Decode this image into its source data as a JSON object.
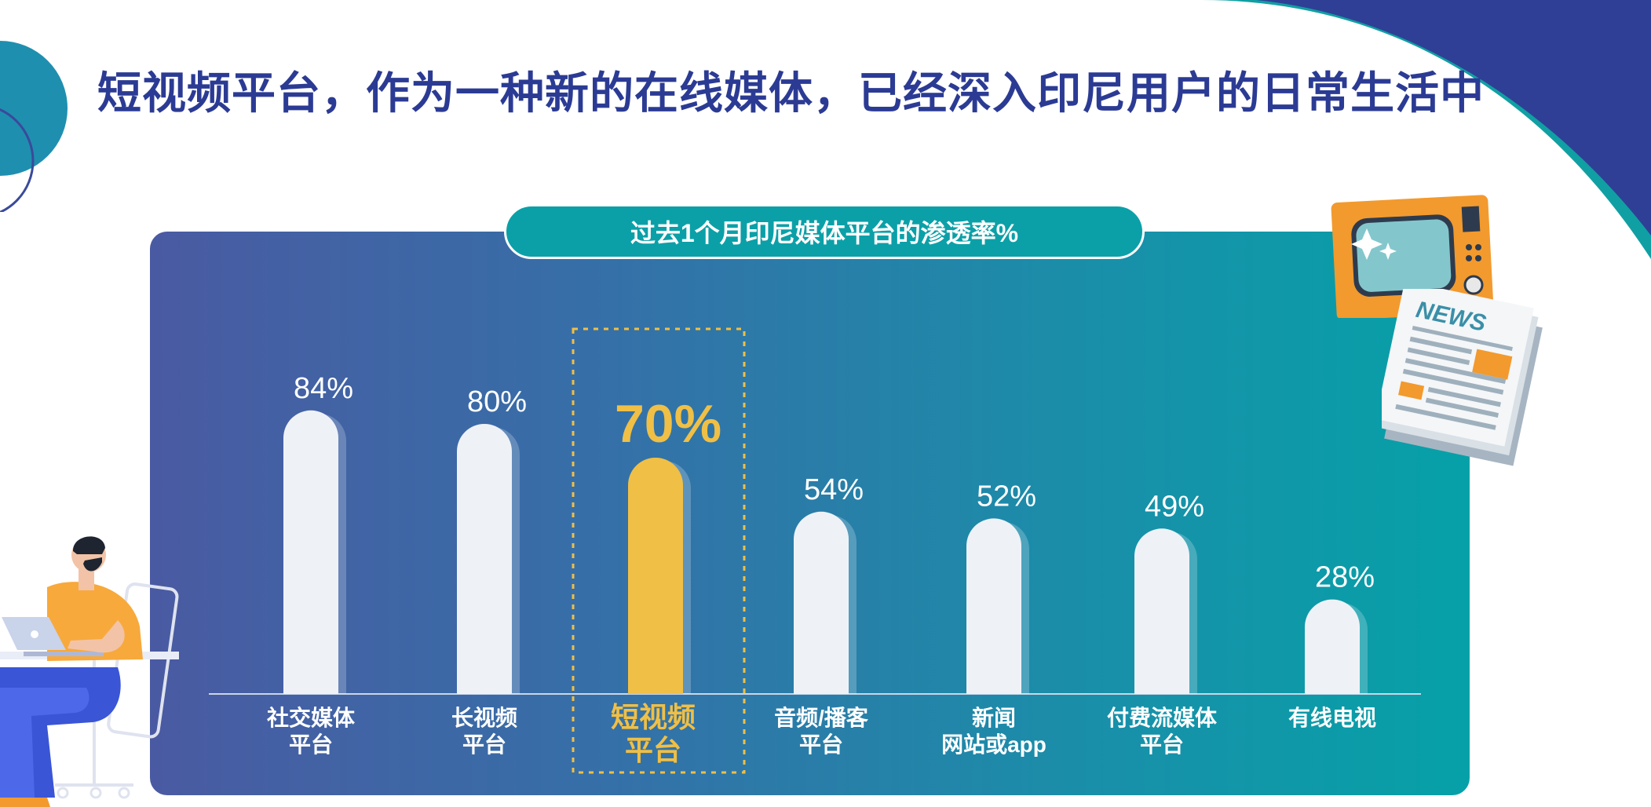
{
  "page": {
    "title": "短视频平台，作为一种新的在线媒体，已经深入印尼用户的日常生活中",
    "accent_color": "#2b3b94",
    "highlight_color": "#f0bf45"
  },
  "chart_data": {
    "type": "bar",
    "title": "过去1个月印尼媒体平台的渗透率%",
    "categories": [
      [
        "社交媒体",
        "平台"
      ],
      [
        "长视频",
        "平台"
      ],
      [
        "短视频",
        "平台"
      ],
      [
        "音频/播客",
        "平台"
      ],
      [
        "新闻",
        "网站或app"
      ],
      [
        "付费流媒体",
        "平台"
      ],
      [
        "有线电视"
      ]
    ],
    "values": [
      84,
      80,
      70,
      54,
      52,
      49,
      28
    ],
    "value_labels": [
      "84%",
      "80%",
      "70%",
      "54%",
      "52%",
      "49%",
      "28%"
    ],
    "highlight_index": 2,
    "ylim": [
      0,
      100
    ],
    "grid": false,
    "legend": "none"
  },
  "illustrations": {
    "tv_icon": "retro-tv-icon",
    "newspaper_icon": "newspaper-icon",
    "newspaper_text": "NEWS",
    "person_icon": "person-with-laptop-icon"
  }
}
